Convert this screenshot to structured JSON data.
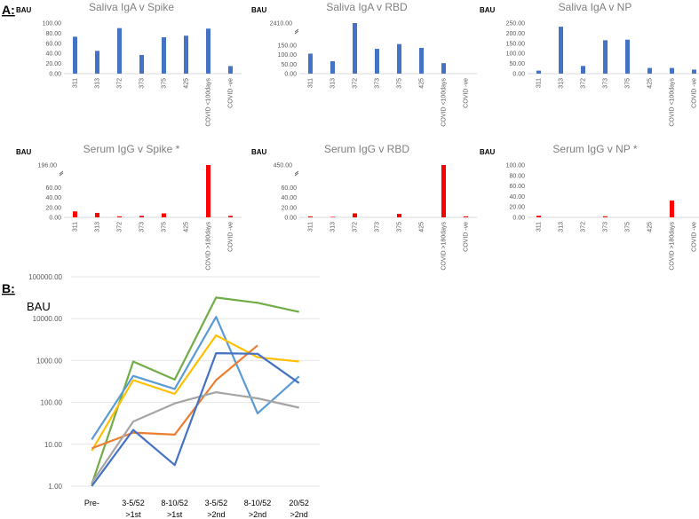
{
  "section_labels": {
    "a": "A:",
    "b": "B:"
  },
  "chart_data": [
    {
      "type": "bar",
      "title": "Saliva IgA v Spike",
      "ylabel": "BAU",
      "color": "#4472c4",
      "categories": [
        "311",
        "313",
        "372",
        "373",
        "375",
        "425",
        "COVID <100days",
        "COVID -ve"
      ],
      "values": [
        73,
        45,
        90,
        37,
        72,
        75,
        89,
        15
      ],
      "ylim": [
        0,
        100
      ],
      "yticks": [
        "0.00",
        "20.00",
        "40.00",
        "60.00",
        "80.00",
        "100.00"
      ]
    },
    {
      "type": "bar",
      "title": "Saliva IgA v RBD",
      "ylabel": "BAU",
      "color": "#4472c4",
      "categories": [
        "311",
        "313",
        "372",
        "373",
        "375",
        "425",
        "COVID <100days",
        "COVID -ve"
      ],
      "values": [
        105,
        65,
        2410,
        130,
        155,
        135,
        55,
        null
      ],
      "ylim": [
        0,
        200
      ],
      "axis_break": true,
      "break_label": "2410.00",
      "yticks": [
        "0.00",
        "50.00",
        "100.00",
        "150.00"
      ]
    },
    {
      "type": "bar",
      "title": "Saliva IgA v NP",
      "ylabel": "BAU",
      "color": "#4472c4",
      "categories": [
        "311",
        "313",
        "372",
        "373",
        "375",
        "425",
        "COVID <100days",
        "COVID -ve"
      ],
      "values": [
        15,
        232,
        38,
        165,
        168,
        28,
        28,
        20
      ],
      "ylim": [
        0,
        250
      ],
      "yticks": [
        "0.00",
        "50.00",
        "100.00",
        "150.00",
        "200.00",
        "250.00"
      ]
    },
    {
      "type": "bar",
      "title": "Serum IgG v Spike *",
      "ylabel": "BAU",
      "color": "#ff0000",
      "categories": [
        "311",
        "313",
        "372",
        "373",
        "375",
        "425",
        "COVID >180days",
        "COVID -ve"
      ],
      "values": [
        12,
        9,
        2,
        3,
        8,
        null,
        196,
        3
      ],
      "ylim": [
        0,
        80
      ],
      "axis_break": true,
      "break_label": "196.00",
      "yticks": [
        "0.00",
        "20.00",
        "40.00",
        "60.00"
      ]
    },
    {
      "type": "bar",
      "title": "Serum IgG v RBD",
      "ylabel": "BAU",
      "color": "#ff0000",
      "categories": [
        "311",
        "313",
        "372",
        "373",
        "375",
        "425",
        "COVID >180days",
        "COVID -ve"
      ],
      "values": [
        2,
        1,
        8,
        null,
        7,
        null,
        450,
        2
      ],
      "ylim": [
        0,
        80
      ],
      "axis_break": true,
      "break_label": "450.00",
      "yticks": [
        "0.00",
        "20.00",
        "40.00",
        "60.00"
      ]
    },
    {
      "type": "bar",
      "title": "Serum IgG v NP *",
      "ylabel": "BAU",
      "color": "#ff0000",
      "categories": [
        "311",
        "313",
        "372",
        "373",
        "375",
        "425",
        "COVID >180days",
        "COVID -ve"
      ],
      "values": [
        3,
        null,
        null,
        2,
        null,
        null,
        32,
        null
      ],
      "ylim": [
        0,
        100
      ],
      "yticks": [
        "0.00",
        "20.00",
        "40.00",
        "60.00",
        "80.00",
        "100.00"
      ]
    },
    {
      "type": "line",
      "ylabel": "BAU",
      "yscale": "log",
      "ylim": [
        1,
        100000
      ],
      "yticks": [
        "1.00",
        "10.00",
        "100.00",
        "1000.00",
        "10000.00",
        "100000.00"
      ],
      "categories": [
        [
          "Pre-"
        ],
        [
          "3-5/52",
          ">1st"
        ],
        [
          "8-10/52",
          ">1st"
        ],
        [
          "3-5/52",
          ">2nd"
        ],
        [
          "8-10/52",
          ">2nd"
        ],
        [
          "20/52",
          ">2nd"
        ]
      ],
      "series": [
        {
          "name": "green",
          "color": "#70ad47",
          "values": [
            1.1,
            950,
            350,
            32000,
            24000,
            14500
          ]
        },
        {
          "name": "light blue",
          "color": "#5b9bd5",
          "values": [
            13,
            430,
            210,
            11000,
            55,
            420
          ]
        },
        {
          "name": "yellow",
          "color": "#ffc000",
          "values": [
            7,
            340,
            160,
            4000,
            1200,
            950
          ]
        },
        {
          "name": "orange",
          "color": "#ed7d31",
          "values": [
            8,
            19,
            17,
            340,
            2300,
            null
          ]
        },
        {
          "name": "gray",
          "color": "#a5a5a5",
          "values": [
            1.2,
            35,
            95,
            175,
            125,
            75
          ]
        },
        {
          "name": "dark blue",
          "color": "#4472c4",
          "values": [
            1,
            22,
            3.2,
            1500,
            1450,
            290
          ]
        }
      ]
    }
  ]
}
